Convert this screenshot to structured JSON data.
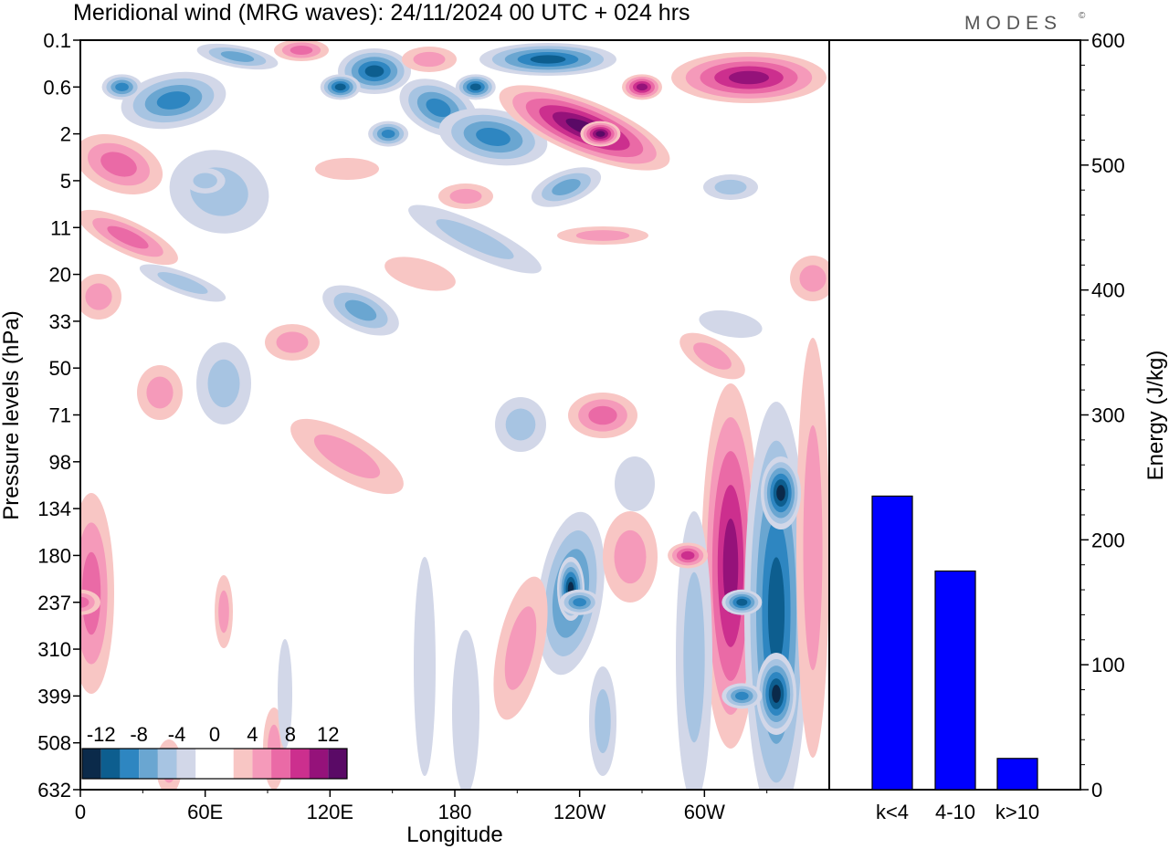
{
  "title": "Meridional wind (MRG waves):  24/11/2024  00 UTC  + 024 hrs",
  "brand": "MODES",
  "brand_mark": "©",
  "colors": {
    "neg_levels": [
      "#0b2a4a",
      "#0d5e8f",
      "#2e86c1",
      "#6aa6d1",
      "#a7c4e2",
      "#d2d7e8"
    ],
    "pos_levels": [
      "#f8c6c4",
      "#f59aba",
      "#ea6aa6",
      "#cc2f8e",
      "#95127a",
      "#5a0a66"
    ],
    "bar": "#0000ff"
  },
  "chart_data": [
    {
      "type": "heatmap",
      "title": "Meridional wind (MRG waves):  24/11/2024  00 UTC  + 024 hrs",
      "xlabel": "Longitude",
      "ylabel": "Pressure levels (hPa)",
      "x_ticks": [
        "0",
        "60E",
        "120E",
        "180",
        "120W",
        "60W"
      ],
      "y_ticks": [
        "0.1",
        "0.6",
        "2",
        "5",
        "11",
        "20",
        "33",
        "50",
        "71",
        "98",
        "134",
        "180",
        "237",
        "310",
        "399",
        "508",
        "632"
      ],
      "colorbar_labels": [
        "-12",
        "-8",
        "-4",
        "0",
        "4",
        "8",
        "12"
      ],
      "colorbar_levels": [
        -14,
        -12,
        -10,
        -8,
        -6,
        -4,
        -2,
        2,
        4,
        6,
        8,
        10,
        12,
        14
      ],
      "features": [
        {
          "lon": 20,
          "level": "0.6",
          "value": -8
        },
        {
          "lon": 60,
          "level": "5",
          "value": -4
        },
        {
          "lon": 125,
          "level": "0.6",
          "value": -10
        },
        {
          "lon": 148,
          "level": "2",
          "value": -8
        },
        {
          "lon": 190,
          "level": "0.6",
          "value": -10
        },
        {
          "lon": 250,
          "level": "2",
          "value": 12
        },
        {
          "lon": 270,
          "level": "0.6",
          "value": 10
        },
        {
          "lon": 240,
          "level": "237",
          "value": -8
        },
        {
          "lon": 292,
          "level": "180",
          "value": 8
        },
        {
          "lon": 318,
          "level": "237",
          "value": -10
        },
        {
          "lon": 318,
          "level": "399",
          "value": -8
        },
        {
          "lon": 0,
          "level": "237",
          "value": 6
        }
      ]
    },
    {
      "type": "bar",
      "categories": [
        "k<4",
        "4-10",
        "k>10"
      ],
      "values": [
        235,
        175,
        25
      ],
      "ylabel": "Energy (J/kg)",
      "ylim": [
        0,
        600
      ],
      "y_ticks": [
        "0",
        "100",
        "200",
        "300",
        "400",
        "500",
        "600"
      ]
    }
  ]
}
